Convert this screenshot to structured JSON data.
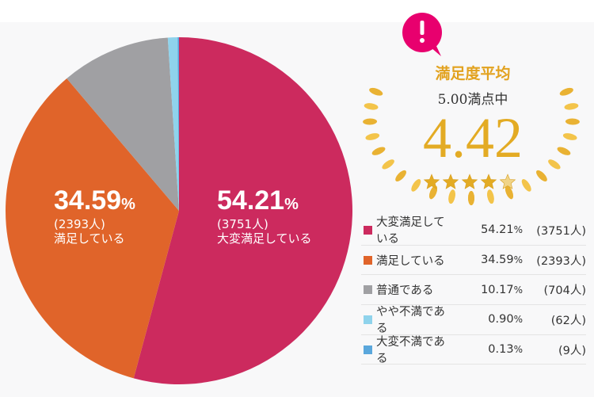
{
  "badge_icon": "exclamation-bubble-icon",
  "rating": {
    "title": "満足度平均",
    "out_of": "5.00満点中",
    "average": "4.42",
    "stars": 4.42,
    "max_stars": 5,
    "accent": "#e3ab24",
    "badge_color": "#e8006e"
  },
  "chart_data": {
    "type": "pie",
    "start": "12 o'clock, clockwise",
    "series": [
      {
        "name": "大変満足している",
        "percent": 54.21,
        "count": 3751,
        "pct_label": "54.21",
        "count_label": "(3751人)",
        "color": "#cc2a5e"
      },
      {
        "name": "満足している",
        "percent": 34.59,
        "count": 2393,
        "pct_label": "34.59",
        "count_label": "(2393人)",
        "color": "#e0642a"
      },
      {
        "name": "普通である",
        "percent": 10.17,
        "count": 704,
        "pct_label": "10.17",
        "count_label": "(704人)",
        "color": "#a0a0a3"
      },
      {
        "name": "やや不満である",
        "percent": 0.9,
        "count": 62,
        "pct_label": "0.90",
        "count_label": "(62人)",
        "color": "#8fd3ec"
      },
      {
        "name": "大変不満である",
        "percent": 0.13,
        "count": 9,
        "pct_label": "0.13",
        "count_label": "(9人)",
        "color": "#5aa7dc"
      }
    ],
    "unit": "%"
  }
}
